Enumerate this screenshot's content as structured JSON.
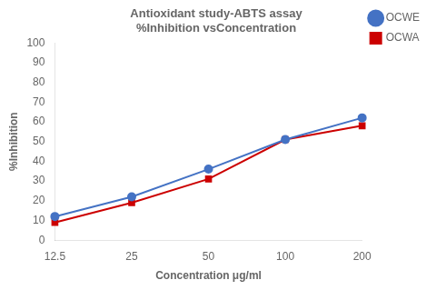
{
  "chart_data": {
    "type": "line",
    "title": "Antioxidant study-ABTS assay\n%Inhibition vsConcentration",
    "x_label": "Concentration μg/ml",
    "y_label": "%Inhibition",
    "categories": [
      "12.5",
      "25",
      "50",
      "100",
      "200"
    ],
    "series": [
      {
        "name": "OCWE",
        "color": "#4472C4",
        "marker": "circle",
        "values": [
          12,
          22,
          36,
          51,
          62
        ]
      },
      {
        "name": "OCWA",
        "color": "#CC0000",
        "marker": "square",
        "values": [
          9,
          19,
          31,
          51,
          58
        ]
      }
    ],
    "ylim": [
      0,
      100
    ],
    "yticks": [
      0,
      10,
      20,
      30,
      40,
      50,
      60,
      70,
      80,
      90,
      100
    ],
    "grid": false,
    "legend": "right"
  }
}
